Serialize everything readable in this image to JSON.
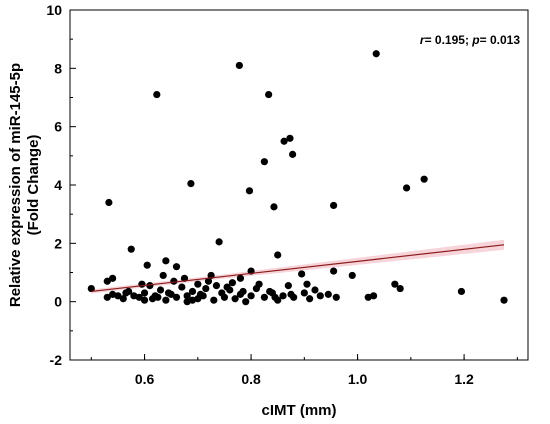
{
  "chart_data": {
    "type": "scatter",
    "xlabel": "cIMT (mm)",
    "ylabel": "Relative expression of miR-145-5p",
    "ylabel2": "(Fold Change)",
    "xlim": [
      0.46,
      1.32
    ],
    "ylim": [
      -2,
      10
    ],
    "xticks": [
      0.6,
      0.8,
      1.0,
      1.2
    ],
    "yticks": [
      -2,
      0,
      2,
      4,
      6,
      8,
      10
    ],
    "xtick_labels": [
      "0.6",
      "0.8",
      "1.0",
      "1.2"
    ],
    "ytick_labels": [
      "-2",
      "0",
      "2",
      "4",
      "6",
      "8",
      "10"
    ],
    "annotation": {
      "r_symbol": "r",
      "r_text": "= 0.195; ",
      "p_symbol": "p",
      "p_text": "= 0.013"
    },
    "point_color": "#000000",
    "fit_color": "#8b1a1a",
    "band_color": "#f3c6cc",
    "fit_line": {
      "x": [
        0.5,
        1.275
      ],
      "y": [
        0.35,
        1.95
      ]
    },
    "points": [
      [
        1.035,
        8.5
      ],
      [
        0.778,
        8.1
      ],
      [
        0.623,
        7.1
      ],
      [
        0.833,
        7.1
      ],
      [
        0.873,
        5.6
      ],
      [
        0.862,
        5.5
      ],
      [
        0.878,
        5.05
      ],
      [
        0.825,
        4.8
      ],
      [
        1.125,
        4.2
      ],
      [
        0.687,
        4.05
      ],
      [
        1.092,
        3.9
      ],
      [
        0.797,
        3.8
      ],
      [
        0.533,
        3.4
      ],
      [
        0.843,
        3.25
      ],
      [
        0.955,
        3.3
      ],
      [
        0.74,
        2.05
      ],
      [
        0.575,
        1.8
      ],
      [
        0.85,
        1.6
      ],
      [
        0.64,
        1.4
      ],
      [
        0.605,
        1.25
      ],
      [
        0.66,
        1.2
      ],
      [
        0.955,
        1.05
      ],
      [
        0.895,
        0.95
      ],
      [
        0.99,
        0.9
      ],
      [
        0.78,
        0.8
      ],
      [
        0.54,
        0.8
      ],
      [
        0.53,
        0.7
      ],
      [
        0.72,
        0.7
      ],
      [
        1.07,
        0.6
      ],
      [
        0.7,
        0.6
      ],
      [
        0.61,
        0.55
      ],
      [
        0.87,
        0.55
      ],
      [
        0.67,
        0.5
      ],
      [
        1.08,
        0.45
      ],
      [
        0.5,
        0.45
      ],
      [
        0.81,
        0.45
      ],
      [
        0.63,
        0.4
      ],
      [
        0.76,
        0.4
      ],
      [
        0.92,
        0.4
      ],
      [
        0.57,
        0.35
      ],
      [
        1.195,
        0.35
      ],
      [
        0.69,
        0.35
      ],
      [
        0.84,
        0.3
      ],
      [
        0.6,
        0.3
      ],
      [
        0.745,
        0.3
      ],
      [
        0.9,
        0.3
      ],
      [
        0.65,
        0.25
      ],
      [
        0.54,
        0.25
      ],
      [
        0.78,
        0.25
      ],
      [
        0.86,
        0.2
      ],
      [
        0.68,
        0.2
      ],
      [
        0.93,
        0.2
      ],
      [
        0.62,
        0.2
      ],
      [
        0.71,
        0.2
      ],
      [
        0.8,
        0.2
      ],
      [
        0.58,
        0.2
      ],
      [
        0.75,
        0.15
      ],
      [
        0.96,
        0.15
      ],
      [
        0.88,
        0.15
      ],
      [
        0.53,
        0.15
      ],
      [
        1.02,
        0.15
      ],
      [
        0.66,
        0.15
      ],
      [
        0.825,
        0.15
      ],
      [
        0.7,
        0.1
      ],
      [
        0.615,
        0.1
      ],
      [
        0.77,
        0.1
      ],
      [
        0.91,
        0.1
      ],
      [
        0.56,
        0.1
      ],
      [
        1.275,
        0.05
      ],
      [
        0.64,
        0.05
      ],
      [
        0.73,
        0.05
      ],
      [
        0.85,
        0.05
      ],
      [
        0.6,
        0.05
      ],
      [
        0.68,
        0.0
      ],
      [
        0.79,
        0.0
      ],
      [
        0.645,
        0.3
      ],
      [
        0.715,
        0.45
      ],
      [
        0.835,
        0.35
      ],
      [
        0.735,
        0.55
      ],
      [
        0.595,
        0.6
      ],
      [
        0.655,
        0.7
      ],
      [
        0.815,
        0.6
      ],
      [
        0.765,
        0.65
      ],
      [
        0.705,
        0.25
      ],
      [
        0.945,
        0.25
      ],
      [
        0.55,
        0.2
      ],
      [
        0.635,
        0.9
      ],
      [
        0.675,
        0.8
      ],
      [
        1.03,
        0.2
      ],
      [
        0.8,
        1.05
      ],
      [
        0.59,
        0.15
      ],
      [
        0.725,
        0.9
      ],
      [
        0.875,
        0.25
      ],
      [
        0.69,
        0.05
      ],
      [
        0.755,
        0.5
      ],
      [
        0.625,
        0.15
      ],
      [
        0.845,
        0.15
      ],
      [
        0.905,
        0.6
      ],
      [
        0.565,
        0.3
      ],
      [
        0.785,
        0.35
      ]
    ]
  }
}
